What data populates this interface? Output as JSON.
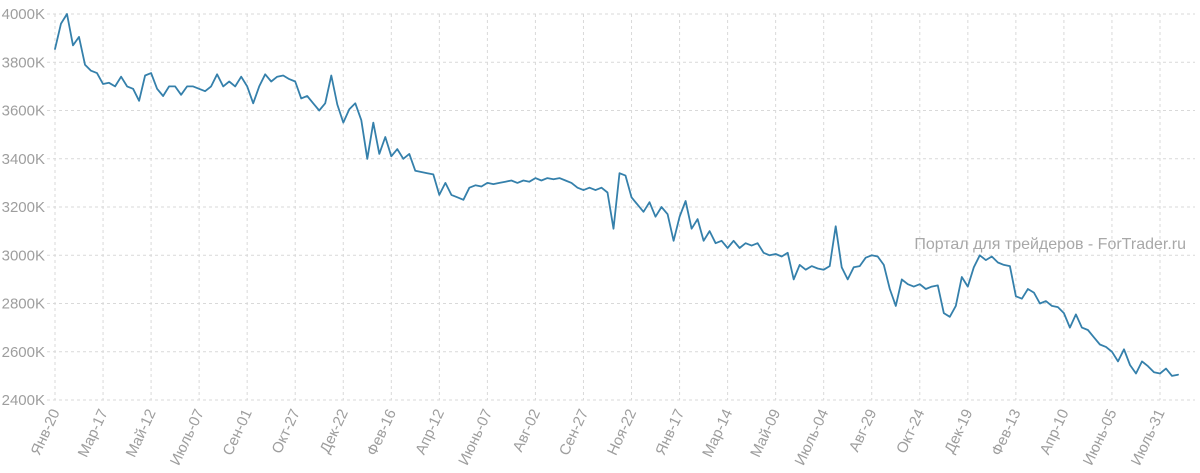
{
  "chart_data": {
    "type": "line",
    "title": "",
    "xlabel": "",
    "ylabel": "",
    "watermark": "Портал для трейдеров - ForTrader.ru",
    "line_color": "#3580ab",
    "grid_color": "#d9d9d9",
    "tick_label_color": "#9e9e9e",
    "grid": "dashed",
    "legend": "none",
    "ylim": [
      2400,
      4000
    ],
    "y_tick_values": [
      2400,
      2600,
      2800,
      3000,
      3200,
      3400,
      3600,
      3800,
      4000
    ],
    "y_tick_labels": [
      "2400K",
      "2600K",
      "2800K",
      "3000K",
      "3200K",
      "3400K",
      "3600K",
      "3800K",
      "4000K"
    ],
    "x_tick_labels": [
      "Янв-20",
      "Мар-17",
      "Май-12",
      "Июль-07",
      "Сен-01",
      "Окт-27",
      "Дек-22",
      "Фев-16",
      "Апр-12",
      "Июнь-07",
      "Авг-02",
      "Сен-27",
      "Ноя-22",
      "Янв-17",
      "Мар-14",
      "Май-09",
      "Июль-04",
      "Авг-29",
      "Окт-24",
      "Дек-19",
      "Фев-13",
      "Апр-10",
      "Июнь-05",
      "Июль-31"
    ],
    "points_per_tick": 8,
    "values": [
      3855,
      3960,
      4000,
      3870,
      3905,
      3790,
      3765,
      3755,
      3710,
      3715,
      3700,
      3740,
      3700,
      3690,
      3640,
      3745,
      3755,
      3690,
      3660,
      3700,
      3700,
      3665,
      3700,
      3700,
      3690,
      3680,
      3700,
      3750,
      3700,
      3720,
      3700,
      3740,
      3700,
      3630,
      3700,
      3750,
      3720,
      3740,
      3745,
      3730,
      3720,
      3650,
      3660,
      3630,
      3600,
      3630,
      3745,
      3625,
      3550,
      3605,
      3630,
      3560,
      3400,
      3550,
      3420,
      3490,
      3410,
      3440,
      3400,
      3420,
      3350,
      3345,
      3340,
      3335,
      3250,
      3300,
      3250,
      3240,
      3230,
      3280,
      3290,
      3285,
      3300,
      3295,
      3300,
      3305,
      3310,
      3300,
      3310,
      3305,
      3320,
      3310,
      3320,
      3315,
      3320,
      3310,
      3300,
      3280,
      3270,
      3280,
      3270,
      3280,
      3260,
      3110,
      3340,
      3330,
      3240,
      3210,
      3180,
      3220,
      3160,
      3200,
      3170,
      3060,
      3160,
      3225,
      3110,
      3150,
      3060,
      3100,
      3050,
      3060,
      3030,
      3060,
      3030,
      3050,
      3040,
      3050,
      3010,
      3000,
      3005,
      2995,
      3010,
      2900,
      2960,
      2940,
      2955,
      2945,
      2940,
      2955,
      3120,
      2950,
      2900,
      2950,
      2955,
      2990,
      3000,
      2995,
      2960,
      2860,
      2790,
      2900,
      2880,
      2870,
      2880,
      2860,
      2870,
      2875,
      2760,
      2745,
      2790,
      2910,
      2870,
      2950,
      3000,
      2980,
      2995,
      2970,
      2960,
      2955,
      2830,
      2820,
      2860,
      2845,
      2800,
      2810,
      2790,
      2785,
      2760,
      2700,
      2755,
      2700,
      2690,
      2660,
      2630,
      2620,
      2600,
      2560,
      2610,
      2545,
      2510,
      2560,
      2540,
      2515,
      2510,
      2530,
      2500,
      2505
    ]
  }
}
